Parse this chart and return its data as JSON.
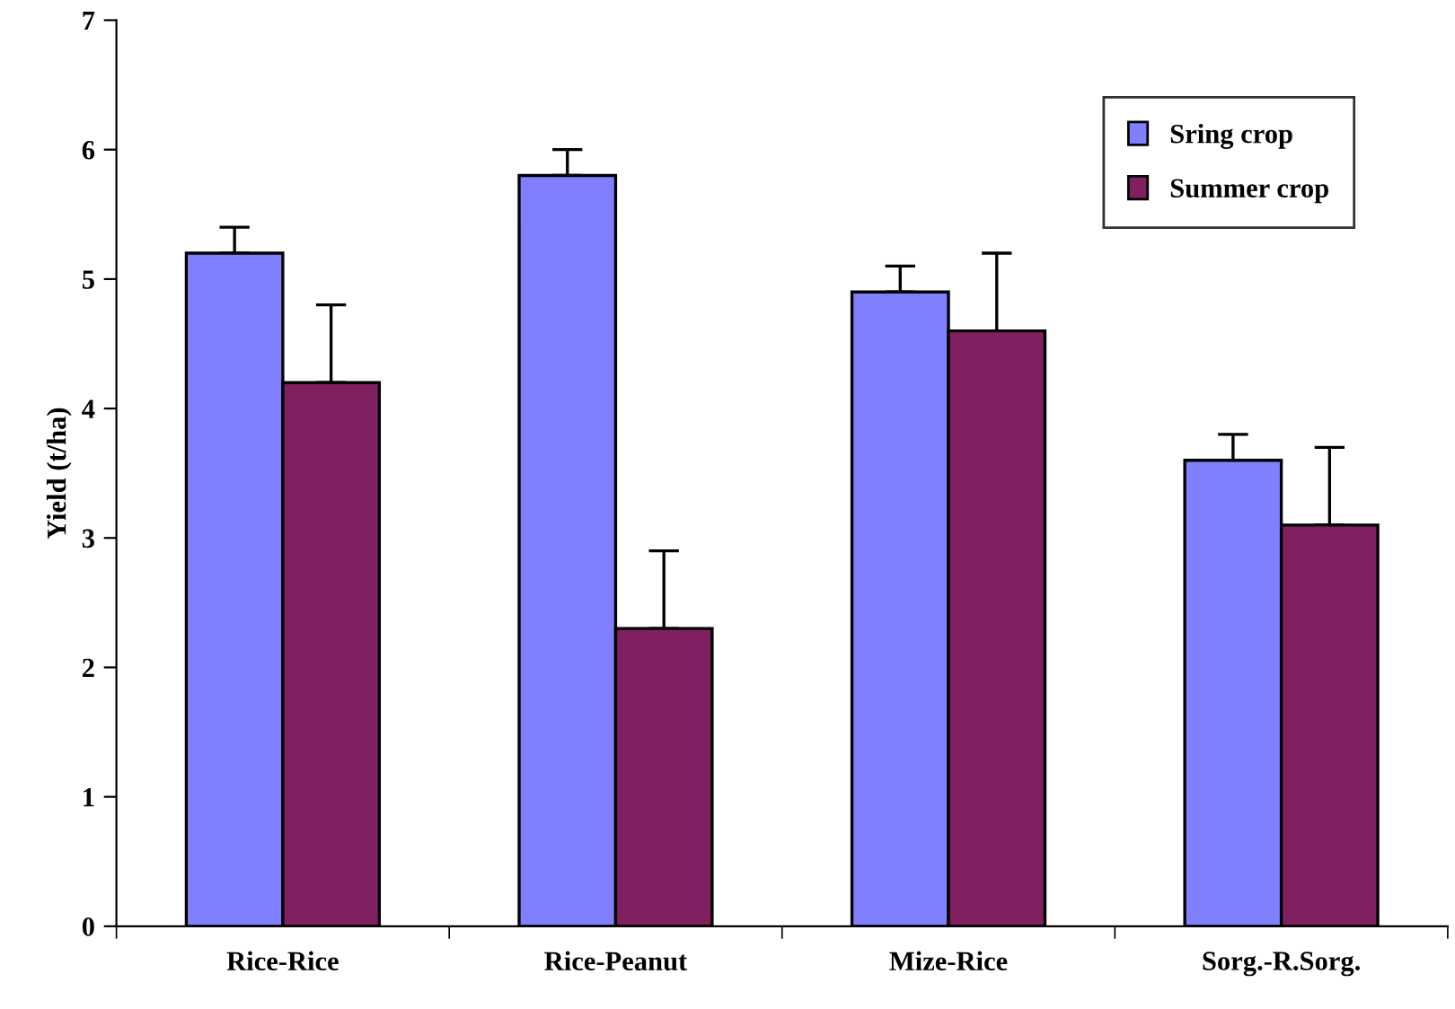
{
  "chart_data": {
    "type": "bar",
    "ylabel": "Yield (t/ha)",
    "categories": [
      "Rice-Rice",
      "Rice-Peanut",
      "Mize-Rice",
      "Sorg.-R.Sorg."
    ],
    "series": [
      {
        "name": "Sring crop",
        "color": "#8080ff",
        "values": [
          5.2,
          5.8,
          4.9,
          3.6
        ],
        "errors": [
          [
            5.2,
            5.4
          ],
          [
            5.8,
            6.0
          ],
          [
            4.9,
            5.1
          ],
          [
            3.6,
            3.8
          ]
        ]
      },
      {
        "name": "Summer crop",
        "color": "#802060",
        "values": [
          4.2,
          2.3,
          4.6,
          3.1
        ],
        "errors": [
          [
            4.2,
            4.8
          ],
          [
            2.3,
            2.9
          ],
          [
            4.6,
            5.2
          ],
          [
            3.1,
            3.7
          ]
        ]
      }
    ],
    "ylim": [
      0,
      7
    ],
    "yticks": [
      0,
      1,
      2,
      3,
      4,
      5,
      6,
      7
    ],
    "grid": false,
    "legend": "top right"
  }
}
